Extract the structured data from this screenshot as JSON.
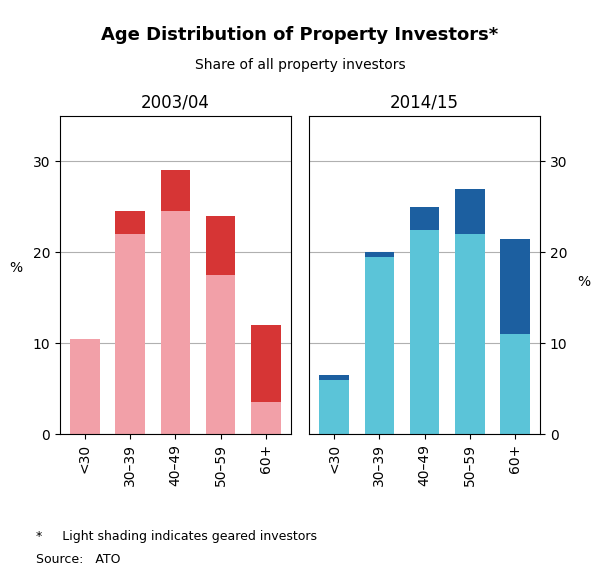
{
  "title": "Age Distribution of Property Investors*",
  "subtitle": "Share of all property investors",
  "annotations": [
    "*     Light shading indicates geared investors",
    "Source:   ATO"
  ],
  "chart_data": [
    {
      "type": "bar",
      "stacked": true,
      "title": "2003/04",
      "ylabel": "%",
      "categories": [
        "<30",
        "30–39",
        "40–49",
        "50–59",
        "60+"
      ],
      "series": [
        {
          "color": "#F2A0A8",
          "values": [
            10.5,
            22.0,
            24.5,
            17.5,
            3.5
          ]
        },
        {
          "color": "#D63535",
          "values": [
            0.0,
            2.5,
            4.5,
            6.5,
            8.5
          ]
        }
      ],
      "ylim": [
        0,
        35
      ],
      "yticks": [
        0,
        10,
        20,
        30
      ],
      "grid": true
    },
    {
      "type": "bar",
      "stacked": true,
      "title": "2014/15",
      "ylabel": "%",
      "categories": [
        "<30",
        "30–39",
        "40–49",
        "50–59",
        "60+"
      ],
      "series": [
        {
          "color": "#5BC4D8",
          "values": [
            6.0,
            19.5,
            22.5,
            22.0,
            11.0
          ]
        },
        {
          "color": "#1C5FA0",
          "values": [
            0.5,
            0.5,
            2.5,
            5.0,
            10.5
          ]
        }
      ],
      "ylim": [
        0,
        35
      ],
      "yticks": [
        0,
        10,
        20,
        30
      ],
      "grid": true
    }
  ]
}
